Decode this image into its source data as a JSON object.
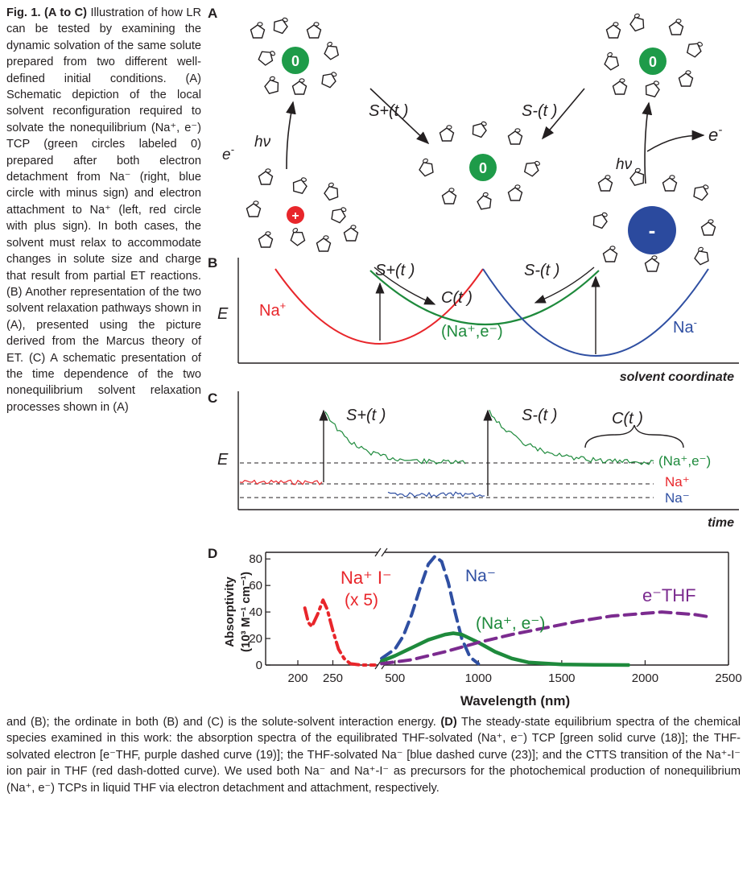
{
  "caption": {
    "fig_label": "Fig. 1.",
    "panels_ac": "(A to C)",
    "left_text": " Illustration of how LR can be tested by examining the dynamic solvation of the same solute prepared from two different well-defined initial conditions. (A) Schematic depiction of the local solvent reconfiguration required to solvate the nonequilibrium (Na⁺, e⁻) TCP (green circles labeled 0) prepared after both electron detachment from Na⁻ (right, blue circle with minus sign) and electron attachment to Na⁺ (left, red circle with plus sign). In both cases, the solvent must relax to accommodate changes in solute size and charge that result from partial ET reactions. (B) Another representation of the two solvent relaxation pathways shown in (A), presented using the picture derived from the Marcus theory of ET. (C) A schematic presentation of the time dependence of the two nonequilibrium solvent relaxation processes shown in (A)",
    "bottom_text_1": "and (B); the ordinate in both (B) and (C) is the solute-solvent interaction energy. ",
    "panel_d": "(D)",
    "bottom_text_2": " The steady-state equilibrium spectra of the chemical species examined in this work: the absorption spectra of the equilibrated THF-solvated (Na⁺, e⁻) TCP [green solid curve (18)]; the THF-solvated electron [e⁻THF, purple dashed curve (19)]; the THF-solvated Na⁻ [blue dashed curve (23)]; and the CTTS transition of the Na⁺-I⁻ ion pair in THF (red dash-dotted curve). We used both Na⁻ and Na⁺-I⁻ as precursors for the photochemical production of nonequilibrium (Na⁺, e⁻) TCPs in liquid THF via electron detachment and attachment, respectively."
  },
  "panelA": {
    "label": "A",
    "neutral_charge": "0",
    "plus_charge": "+",
    "minus_charge": "-",
    "hv": "hν",
    "e_minus": "e",
    "s_plus": "S+(t )",
    "s_minus": "S-(t )"
  },
  "panelB": {
    "label": "B",
    "ylabel": "E",
    "na_plus": "Na",
    "na_minus": "Na",
    "pair": "(Na⁺,e⁻)",
    "s_plus": "S+(t )",
    "s_minus": "S-(t )",
    "c_t": "C(t )",
    "xlabel": "solvent coordinate"
  },
  "panelC": {
    "label": "C",
    "ylabel": "E",
    "s_plus": "S+(t )",
    "s_minus": "S-(t )",
    "c_t": "C(t )",
    "pair": "(Na⁺,e⁻)",
    "na_plus": "Na⁺",
    "na_minus": "Na⁻",
    "xlabel": "time"
  },
  "panelD": {
    "label": "D",
    "ylabel_1": "Absorptivity",
    "ylabel_2": "(10³ M⁻¹ cm⁻¹)",
    "xlabel": "Wavelength (nm)",
    "label_nai": "Na⁺ I⁻",
    "label_x5": "(x 5)",
    "label_na_minus": "Na⁻",
    "label_pair": "(Na⁺, e⁻)",
    "label_ethf": "e⁻THF",
    "colors": {
      "nai": "#e8262b",
      "na_minus": "#2f4fa2",
      "pair": "#1e8a3c",
      "ethf": "#7b2b8f"
    }
  },
  "chart_data": {
    "type": "line",
    "title": "",
    "xlabel": "Wavelength (nm)",
    "ylabel": "Absorptivity (10³ M⁻¹ cm⁻¹)",
    "ylim": [
      0,
      85
    ],
    "x_axis_break": [
      320,
      400
    ],
    "xticks": [
      200,
      250,
      500,
      1000,
      1500,
      2000,
      2500
    ],
    "yticks": [
      0,
      20,
      40,
      60,
      80
    ],
    "series": [
      {
        "name": "Na⁺ I⁻ (x 5)",
        "style": "dash-dot",
        "color": "#e8262b",
        "x": [
          210,
          215,
          220,
          228,
          236,
          242,
          250,
          258,
          266,
          275,
          290,
          310
        ],
        "y": [
          43,
          32,
          29,
          38,
          49,
          42,
          26,
          12,
          5,
          1,
          0,
          0
        ]
      },
      {
        "name": "Na⁻",
        "style": "dashed",
        "color": "#2f4fa2",
        "x": [
          420,
          500,
          550,
          600,
          650,
          700,
          740,
          780,
          820,
          860,
          900,
          950,
          1000
        ],
        "y": [
          5,
          12,
          22,
          38,
          58,
          76,
          82,
          78,
          62,
          40,
          20,
          6,
          1
        ]
      },
      {
        "name": "(Na⁺, e⁻)",
        "style": "solid",
        "color": "#1e8a3c",
        "x": [
          420,
          500,
          600,
          700,
          800,
          850,
          900,
          1000,
          1100,
          1200,
          1300,
          1500,
          1700,
          1900
        ],
        "y": [
          3,
          7,
          13,
          19,
          23,
          24,
          23,
          17,
          10,
          5,
          2,
          0.5,
          0.2,
          0
        ]
      },
      {
        "name": "e⁻THF",
        "style": "dashed",
        "color": "#7b2b8f",
        "x": [
          420,
          600,
          800,
          1000,
          1200,
          1400,
          1600,
          1800,
          2000,
          2100,
          2200,
          2300,
          2400
        ],
        "y": [
          1,
          4,
          10,
          17,
          23,
          28,
          33,
          37,
          39,
          40,
          39,
          38,
          36
        ]
      }
    ]
  }
}
